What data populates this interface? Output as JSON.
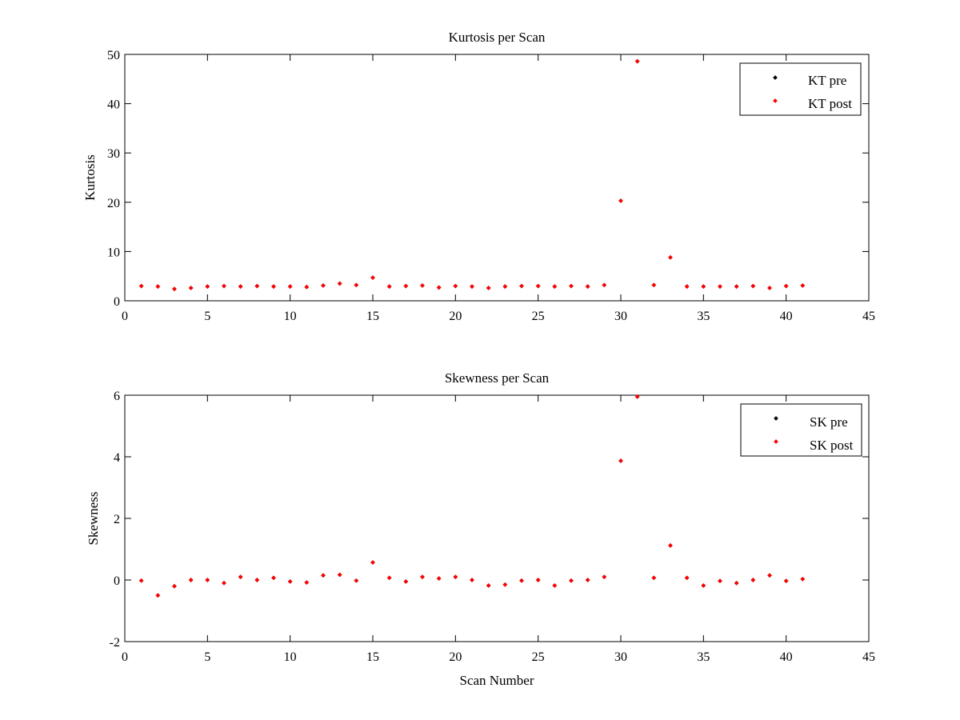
{
  "chart_data": [
    {
      "type": "scatter",
      "title": "Kurtosis per Scan",
      "xlabel": "",
      "ylabel": "Kurtosis",
      "xlim": [
        0,
        45
      ],
      "ylim": [
        0,
        50
      ],
      "xticks": [
        "0",
        "5",
        "10",
        "15",
        "20",
        "25",
        "30",
        "35",
        "40",
        "45"
      ],
      "yticks": [
        "0",
        "10",
        "20",
        "30",
        "40",
        "50"
      ],
      "grid": false,
      "legend_position": "top-right",
      "x": [
        1,
        2,
        3,
        4,
        5,
        6,
        7,
        8,
        9,
        10,
        11,
        12,
        13,
        14,
        15,
        16,
        17,
        18,
        19,
        20,
        21,
        22,
        23,
        24,
        25,
        26,
        27,
        28,
        29,
        30,
        31,
        32,
        33,
        34,
        35,
        36,
        37,
        38,
        39,
        40,
        41
      ],
      "series": [
        {
          "name": "KT pre",
          "color": "#000000",
          "values": [
            3.0,
            2.9,
            2.4,
            2.6,
            2.9,
            3.0,
            2.9,
            3.0,
            2.9,
            2.9,
            2.8,
            3.1,
            3.5,
            3.2,
            4.7,
            2.9,
            3.0,
            3.1,
            2.7,
            3.0,
            2.9,
            2.6,
            2.9,
            3.0,
            3.0,
            2.9,
            3.0,
            2.9,
            3.2,
            20.3,
            48.6,
            3.2,
            8.8,
            2.9,
            2.9,
            2.9,
            2.9,
            3.0,
            2.6,
            3.0,
            3.1
          ]
        },
        {
          "name": "KT post",
          "color": "#ff0000",
          "values": [
            3.0,
            2.9,
            2.4,
            2.6,
            2.9,
            3.0,
            2.9,
            3.0,
            2.9,
            2.9,
            2.8,
            3.1,
            3.5,
            3.2,
            4.7,
            2.9,
            3.0,
            3.1,
            2.7,
            3.0,
            2.9,
            2.6,
            2.9,
            3.0,
            3.0,
            2.9,
            3.0,
            2.9,
            3.2,
            20.3,
            48.6,
            3.2,
            8.8,
            2.9,
            2.9,
            2.9,
            2.9,
            3.0,
            2.6,
            3.0,
            3.1
          ]
        }
      ]
    },
    {
      "type": "scatter",
      "title": "Skewness per Scan",
      "xlabel": "Scan Number",
      "ylabel": "Skewness",
      "xlim": [
        0,
        45
      ],
      "ylim": [
        -2,
        6
      ],
      "xticks": [
        "0",
        "5",
        "10",
        "15",
        "20",
        "25",
        "30",
        "35",
        "40",
        "45"
      ],
      "yticks": [
        "-2",
        "0",
        "2",
        "4",
        "6"
      ],
      "grid": false,
      "legend_position": "top-right",
      "x": [
        1,
        2,
        3,
        4,
        5,
        6,
        7,
        8,
        9,
        10,
        11,
        12,
        13,
        14,
        15,
        16,
        17,
        18,
        19,
        20,
        21,
        22,
        23,
        24,
        25,
        26,
        27,
        28,
        29,
        30,
        31,
        32,
        33,
        34,
        35,
        36,
        37,
        38,
        39,
        40,
        41
      ],
      "series": [
        {
          "name": "SK pre",
          "color": "#000000",
          "values": [
            -0.02,
            -0.5,
            -0.2,
            0.0,
            0.0,
            -0.1,
            0.1,
            0.0,
            0.07,
            -0.05,
            -0.08,
            0.15,
            0.17,
            -0.02,
            0.57,
            0.07,
            -0.05,
            0.1,
            0.05,
            0.1,
            0.0,
            -0.18,
            -0.15,
            -0.02,
            0.0,
            -0.18,
            -0.02,
            0.0,
            0.1,
            3.87,
            5.95,
            0.07,
            1.12,
            0.07,
            -0.18,
            -0.03,
            -0.1,
            0.0,
            0.15,
            -0.03,
            0.03
          ]
        },
        {
          "name": "SK post",
          "color": "#ff0000",
          "values": [
            -0.02,
            -0.5,
            -0.2,
            0.0,
            0.0,
            -0.1,
            0.1,
            0.0,
            0.07,
            -0.05,
            -0.08,
            0.15,
            0.17,
            -0.02,
            0.57,
            0.07,
            -0.05,
            0.1,
            0.05,
            0.1,
            0.0,
            -0.18,
            -0.15,
            -0.02,
            0.0,
            -0.18,
            -0.02,
            0.0,
            0.1,
            3.87,
            5.95,
            0.07,
            1.12,
            0.07,
            -0.18,
            -0.03,
            -0.1,
            0.0,
            0.15,
            -0.03,
            0.03
          ]
        }
      ]
    }
  ]
}
